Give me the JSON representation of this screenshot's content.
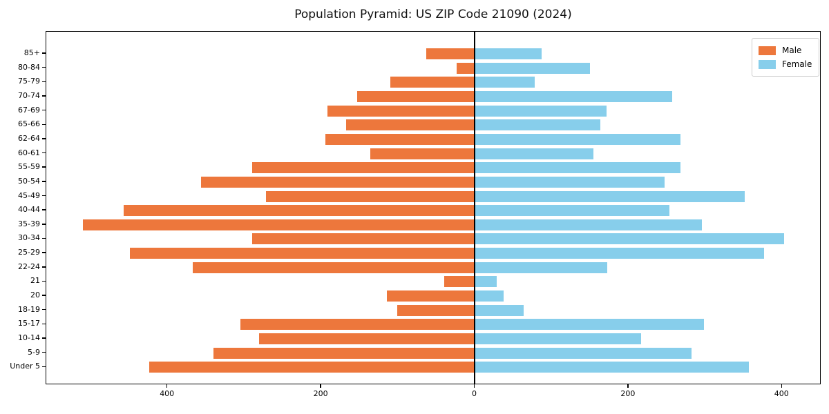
{
  "title": "Population Pyramid: US ZIP Code 21090 (2024)",
  "colors": {
    "male": "#ed773c",
    "female": "#87ceeb",
    "axis": "#000000",
    "legend_border": "#cccccc",
    "background": "#ffffff"
  },
  "legend": {
    "position": "upper right",
    "entries": [
      {
        "label": "Male",
        "color": "#ed773c"
      },
      {
        "label": "Female",
        "color": "#87ceeb"
      }
    ]
  },
  "chart_data": {
    "type": "bar",
    "variant": "population-pyramid",
    "title": "Population Pyramid: US ZIP Code 21090 (2024)",
    "xlabel": "",
    "ylabel": "",
    "grid": false,
    "legend_position": "upper right",
    "categories": [
      "85+",
      "80-84",
      "75-79",
      "70-74",
      "67-69",
      "65-66",
      "62-64",
      "60-61",
      "55-59",
      "50-54",
      "45-49",
      "40-44",
      "35-39",
      "30-34",
      "25-29",
      "22-24",
      "21",
      "20",
      "18-19",
      "15-17",
      "10-14",
      "5-9",
      "Under 5"
    ],
    "series": [
      {
        "name": "Male",
        "side": "left",
        "color": "#ed773c",
        "values": [
          63,
          24,
          110,
          153,
          192,
          168,
          195,
          136,
          290,
          357,
          272,
          457,
          510,
          290,
          449,
          367,
          40,
          115,
          101,
          305,
          281,
          340,
          424
        ]
      },
      {
        "name": "Female",
        "side": "right",
        "color": "#87ceeb",
        "values": [
          87,
          150,
          78,
          257,
          171,
          163,
          268,
          154,
          268,
          247,
          351,
          253,
          295,
          402,
          376,
          172,
          28,
          37,
          63,
          298,
          216,
          282,
          357
        ]
      }
    ],
    "xlim": [
      -558,
      451
    ],
    "xticks": [
      {
        "value": -400,
        "label": "400"
      },
      {
        "value": -200,
        "label": "200"
      },
      {
        "value": 0,
        "label": "0"
      },
      {
        "value": 200,
        "label": "200"
      },
      {
        "value": 400,
        "label": "400"
      }
    ]
  }
}
